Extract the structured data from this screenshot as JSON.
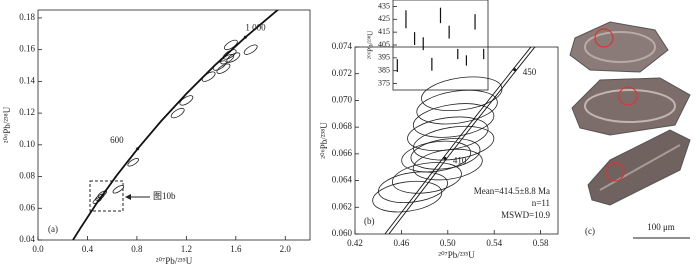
{
  "chart_data": [
    {
      "type": "concordia",
      "panel_label": "(a)",
      "x_label": "²⁰⁷Pb/²³⁵U",
      "y_label": "²⁰⁶Pb/²³⁸U",
      "annotation": "图10b",
      "xlim": [
        0,
        2.2
      ],
      "ylim": [
        0.04,
        0.185
      ],
      "xticks": [
        {
          "value": 0,
          "label": "0.0"
        },
        0.4,
        0.8,
        1.2,
        1.6,
        {
          "value": 2,
          "label": "2.0"
        }
      ],
      "yticks": [
        0.04,
        0.06,
        0.08,
        {
          "value": 0.1,
          "label": "0.10"
        },
        0.12,
        0.14,
        0.16,
        0.18
      ],
      "concordia": {
        "x": [
          0.283,
          0.344,
          0.482,
          0.636,
          0.806,
          0.993,
          1.199,
          1.426,
          1.677,
          1.955
        ],
        "values": [
          0.04,
          0.0476,
          0.064,
          0.0806,
          0.0975,
          0.1147,
          0.1321,
          0.1498,
          0.1678,
          0.1861
        ],
        "labels": [
          null,
          null,
          null,
          null,
          "600",
          null,
          null,
          null,
          "1 000",
          null
        ]
      },
      "x": [
        1.56,
        1.55,
        1.58,
        1.53,
        1.72,
        1.47,
        1.5,
        1.38,
        1.2,
        1.13,
        0.77,
        0.65,
        0.52,
        0.5,
        0.48
      ],
      "values": [
        0.163,
        0.157,
        0.155,
        0.154,
        0.16,
        0.15,
        0.148,
        0.143,
        0.128,
        0.12,
        0.089,
        0.072,
        0.069,
        0.067,
        0.065
      ],
      "x_err": [
        0.06,
        0.06,
        0.06,
        0.06,
        0.06,
        0.06,
        0.06,
        0.06,
        0.06,
        0.06,
        0.05,
        0.05,
        0.04,
        0.04,
        0.04
      ],
      "y_err": [
        0.002,
        0.002,
        0.002,
        0.002,
        0.002,
        0.002,
        0.002,
        0.002,
        0.002,
        0.002,
        0.0015,
        0.0015,
        0.0012,
        0.0012,
        0.0012
      ]
    },
    {
      "type": "concordia",
      "panel_label": "(b)",
      "x_label": "²⁰⁷Pb/²³⁵U",
      "y_label": "²⁰⁶Pb/²³⁸U",
      "notes": [
        "Mean=414.5±8.8 Ma",
        "n=11",
        "MSWD=10.9"
      ],
      "xlim": [
        0.42,
        0.595
      ],
      "ylim": [
        0.06,
        0.074
      ],
      "xticks": [
        0.42,
        0.46,
        {
          "value": 0.5,
          "label": "0.50"
        },
        0.54,
        0.58
      ],
      "yticks": [
        {
          "value": 0.06,
          "label": "0.060"
        },
        0.062,
        0.064,
        0.066,
        0.068,
        {
          "value": 0.07,
          "label": "0.070"
        },
        0.072,
        0.074
      ],
      "concordia": {
        "x": [
          0.4396,
          0.4539,
          0.4828,
          0.4975,
          0.5123,
          0.5577,
          0.5731,
          0.6037
        ],
        "values": [
          0.0591,
          0.06072,
          0.06399,
          0.06567,
          0.06732,
          0.0723,
          0.07397,
          0.0756
        ],
        "labels": [
          null,
          null,
          null,
          "410",
          null,
          "450",
          null,
          null
        ]
      },
      "x": [
        0.512,
        0.508,
        0.505,
        0.5,
        0.505,
        0.49,
        0.5,
        0.482,
        0.47,
        0.465,
        0.498
      ],
      "values": [
        0.0705,
        0.0695,
        0.0685,
        0.0675,
        0.0668,
        0.0658,
        0.0652,
        0.0642,
        0.0635,
        0.0628,
        0.066
      ],
      "x_err": [
        0.035,
        0.035,
        0.035,
        0.035,
        0.035,
        0.03,
        0.03,
        0.03,
        0.03,
        0.03,
        0.03
      ],
      "y_err": [
        0.0012,
        0.0012,
        0.0012,
        0.0012,
        0.0012,
        0.0011,
        0.0011,
        0.0011,
        0.0011,
        0.0011,
        0.0011
      ]
    },
    {
      "type": "errorbar",
      "y_label": "²⁰⁶Pb/²³⁸U",
      "ylim": [
        370,
        440
      ],
      "yticks": [
        375,
        385,
        395,
        405,
        415,
        425,
        435
      ],
      "values": [
        389,
        425,
        410,
        406,
        390,
        428,
        415,
        398,
        393,
        423,
        398
      ],
      "errors": [
        5,
        7,
        5,
        5,
        5,
        6,
        5,
        4,
        4,
        6,
        4
      ]
    }
  ],
  "images": {
    "panel_label": "(c)",
    "scale_bar": "100 μm"
  }
}
